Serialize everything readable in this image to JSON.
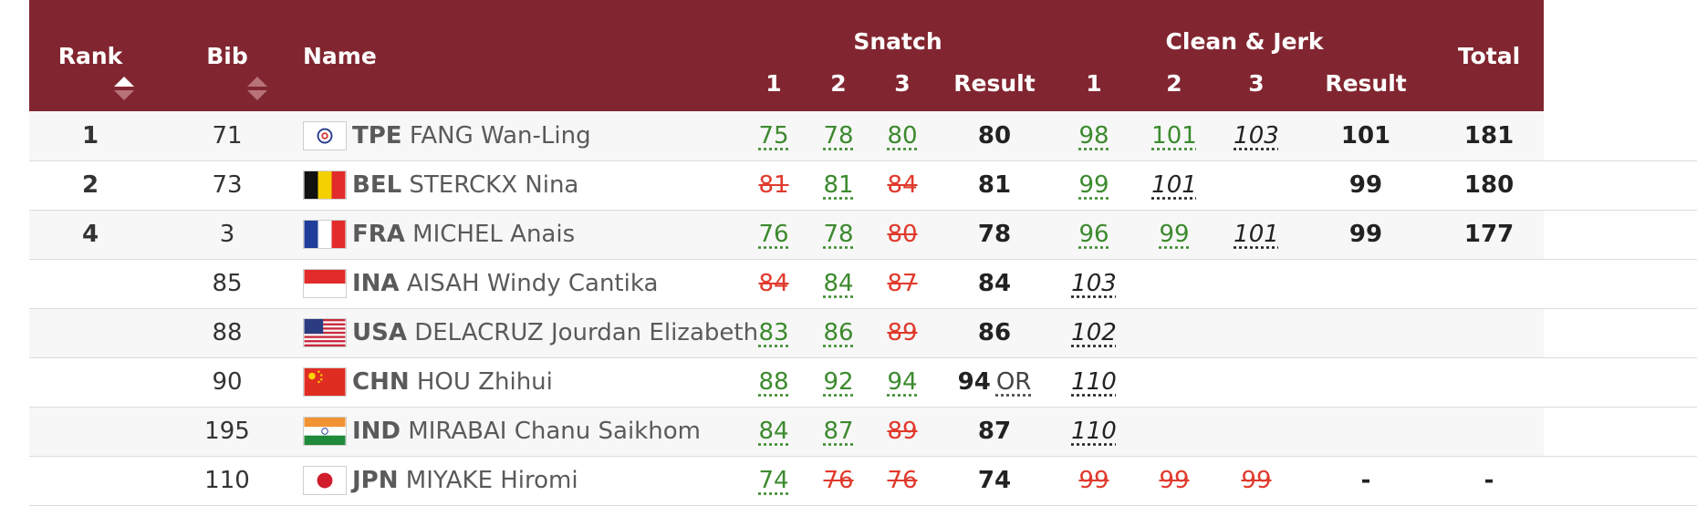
{
  "header": {
    "rank": "Rank",
    "bib": "Bib",
    "name": "Name",
    "snatch": "Snatch",
    "clean_jerk": "Clean & Jerk",
    "total": "Total",
    "att1": "1",
    "att2": "2",
    "att3": "3",
    "result": "Result"
  },
  "colors": {
    "header_bg": "#812630",
    "good_lift": "#3c8a2e",
    "no_lift": "#e03a2c"
  },
  "rows": [
    {
      "rank": "1",
      "bib": "71",
      "noc": "TPE",
      "athlete": "FANG Wan-Ling",
      "flag": "tpe-flag",
      "snatch": [
        {
          "v": "75",
          "s": "good"
        },
        {
          "v": "78",
          "s": "good"
        },
        {
          "v": "80",
          "s": "good"
        }
      ],
      "snatch_result": "80",
      "snatch_record": "",
      "cj": [
        {
          "v": "98",
          "s": "good"
        },
        {
          "v": "101",
          "s": "good"
        },
        {
          "v": "103",
          "s": "pend"
        }
      ],
      "cj_result": "101",
      "total": "181"
    },
    {
      "rank": "2",
      "bib": "73",
      "noc": "BEL",
      "athlete": "STERCKX Nina",
      "flag": "bel-flag",
      "snatch": [
        {
          "v": "81",
          "s": "fail"
        },
        {
          "v": "81",
          "s": "good"
        },
        {
          "v": "84",
          "s": "fail"
        }
      ],
      "snatch_result": "81",
      "snatch_record": "",
      "cj": [
        {
          "v": "99",
          "s": "good"
        },
        {
          "v": "101",
          "s": "pend"
        },
        {
          "v": "",
          "s": "none"
        }
      ],
      "cj_result": "99",
      "total": "180"
    },
    {
      "rank": "4",
      "bib": "3",
      "noc": "FRA",
      "athlete": "MICHEL Anais",
      "flag": "fra-flag",
      "snatch": [
        {
          "v": "76",
          "s": "good"
        },
        {
          "v": "78",
          "s": "good"
        },
        {
          "v": "80",
          "s": "fail"
        }
      ],
      "snatch_result": "78",
      "snatch_record": "",
      "cj": [
        {
          "v": "96",
          "s": "good"
        },
        {
          "v": "99",
          "s": "good"
        },
        {
          "v": "101",
          "s": "pend"
        }
      ],
      "cj_result": "99",
      "total": "177"
    },
    {
      "rank": "",
      "bib": "85",
      "noc": "INA",
      "athlete": "AISAH Windy Cantika",
      "flag": "ina-flag",
      "snatch": [
        {
          "v": "84",
          "s": "fail"
        },
        {
          "v": "84",
          "s": "good"
        },
        {
          "v": "87",
          "s": "fail"
        }
      ],
      "snatch_result": "84",
      "snatch_record": "",
      "cj": [
        {
          "v": "103",
          "s": "pend"
        },
        {
          "v": "",
          "s": "none"
        },
        {
          "v": "",
          "s": "none"
        }
      ],
      "cj_result": "",
      "total": ""
    },
    {
      "rank": "",
      "bib": "88",
      "noc": "USA",
      "athlete": "DELACRUZ Jourdan Elizabeth",
      "flag": "usa-flag",
      "snatch": [
        {
          "v": "83",
          "s": "good"
        },
        {
          "v": "86",
          "s": "good"
        },
        {
          "v": "89",
          "s": "fail"
        }
      ],
      "snatch_result": "86",
      "snatch_record": "",
      "cj": [
        {
          "v": "102",
          "s": "pend"
        },
        {
          "v": "",
          "s": "none"
        },
        {
          "v": "",
          "s": "none"
        }
      ],
      "cj_result": "",
      "total": ""
    },
    {
      "rank": "",
      "bib": "90",
      "noc": "CHN",
      "athlete": "HOU Zhihui",
      "flag": "chn-flag",
      "snatch": [
        {
          "v": "88",
          "s": "good"
        },
        {
          "v": "92",
          "s": "good"
        },
        {
          "v": "94",
          "s": "good"
        }
      ],
      "snatch_result": "94",
      "snatch_record": "OR",
      "cj": [
        {
          "v": "110",
          "s": "pend"
        },
        {
          "v": "",
          "s": "none"
        },
        {
          "v": "",
          "s": "none"
        }
      ],
      "cj_result": "",
      "total": ""
    },
    {
      "rank": "",
      "bib": "195",
      "noc": "IND",
      "athlete": "MIRABAI Chanu Saikhom",
      "flag": "ind-flag",
      "snatch": [
        {
          "v": "84",
          "s": "good"
        },
        {
          "v": "87",
          "s": "good"
        },
        {
          "v": "89",
          "s": "fail"
        }
      ],
      "snatch_result": "87",
      "snatch_record": "",
      "cj": [
        {
          "v": "110",
          "s": "pend"
        },
        {
          "v": "",
          "s": "none"
        },
        {
          "v": "",
          "s": "none"
        }
      ],
      "cj_result": "",
      "total": ""
    },
    {
      "rank": "",
      "bib": "110",
      "noc": "JPN",
      "athlete": "MIYAKE Hiromi",
      "flag": "jpn-flag",
      "snatch": [
        {
          "v": "74",
          "s": "good"
        },
        {
          "v": "76",
          "s": "fail"
        },
        {
          "v": "76",
          "s": "fail"
        }
      ],
      "snatch_result": "74",
      "snatch_record": "",
      "cj": [
        {
          "v": "99",
          "s": "fail"
        },
        {
          "v": "99",
          "s": "fail"
        },
        {
          "v": "99",
          "s": "fail"
        }
      ],
      "cj_result": "-",
      "total": "-"
    }
  ]
}
